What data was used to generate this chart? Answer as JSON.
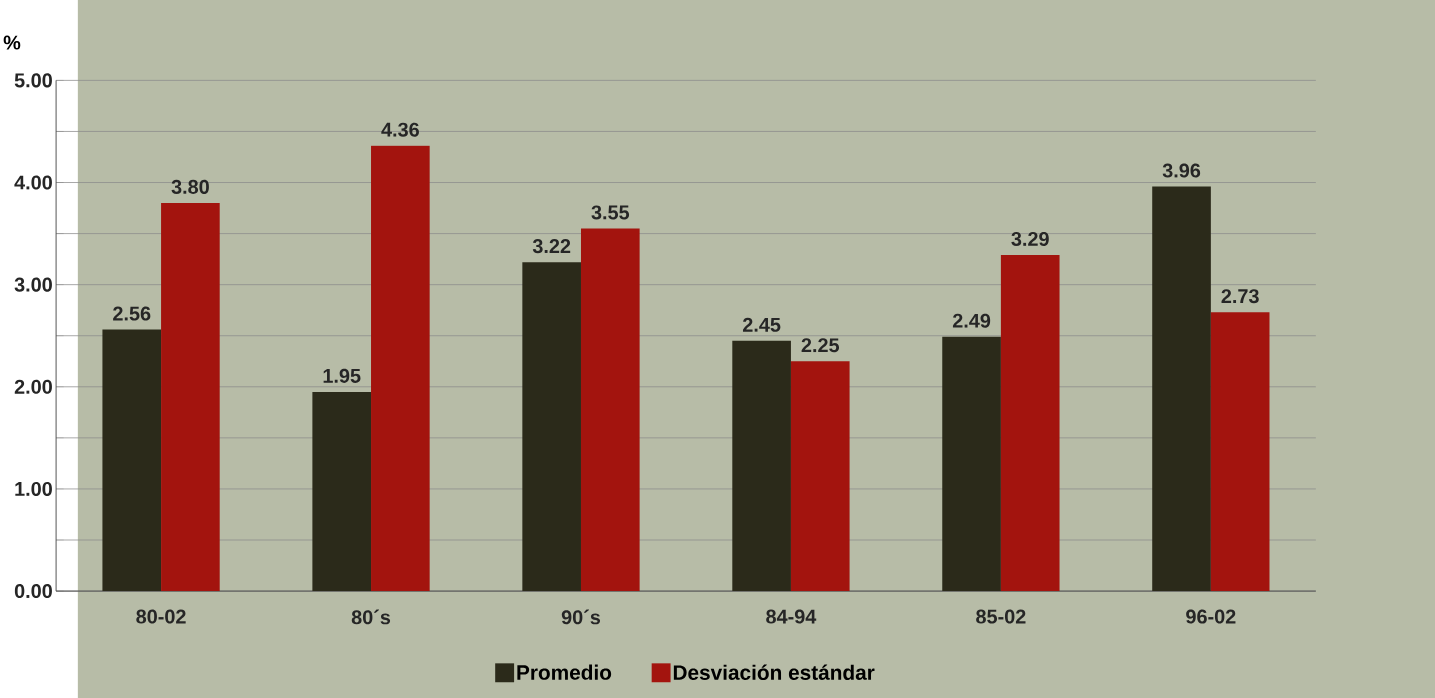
{
  "chart_data": {
    "type": "bar",
    "ylabel": "%",
    "categories": [
      "80-02",
      "80´s",
      "90´s",
      "84-94",
      "85-02",
      "96-02"
    ],
    "series": [
      {
        "name": "Promedio",
        "color": "#2b2a1a",
        "values": [
          2.56,
          1.95,
          3.22,
          2.45,
          2.49,
          3.96
        ],
        "value_labels": [
          "2.56",
          "1.95",
          "3.22",
          "2.45",
          "2.49",
          "3.96"
        ]
      },
      {
        "name": "Desviación estándar",
        "color": "#a3140e",
        "values": [
          3.8,
          4.36,
          3.55,
          2.25,
          3.29,
          2.73
        ],
        "value_labels": [
          "3.80",
          "4.36",
          "3.55",
          "2.25",
          "3.29",
          "2.73"
        ]
      }
    ],
    "ylim": [
      0,
      5
    ],
    "yticks": [
      {
        "value": 0,
        "label": "0.00"
      },
      {
        "value": 0.5,
        "label": null
      },
      {
        "value": 1,
        "label": "1.00"
      },
      {
        "value": 1.5,
        "label": null
      },
      {
        "value": 2,
        "label": "2.00"
      },
      {
        "value": 2.5,
        "label": null
      },
      {
        "value": 3,
        "label": "3.00"
      },
      {
        "value": 3.5,
        "label": null
      },
      {
        "value": 4,
        "label": "4.00"
      },
      {
        "value": 4.5,
        "label": null
      },
      {
        "value": 5,
        "label": "5.00"
      }
    ],
    "grid": "y",
    "legend": "bottom"
  }
}
